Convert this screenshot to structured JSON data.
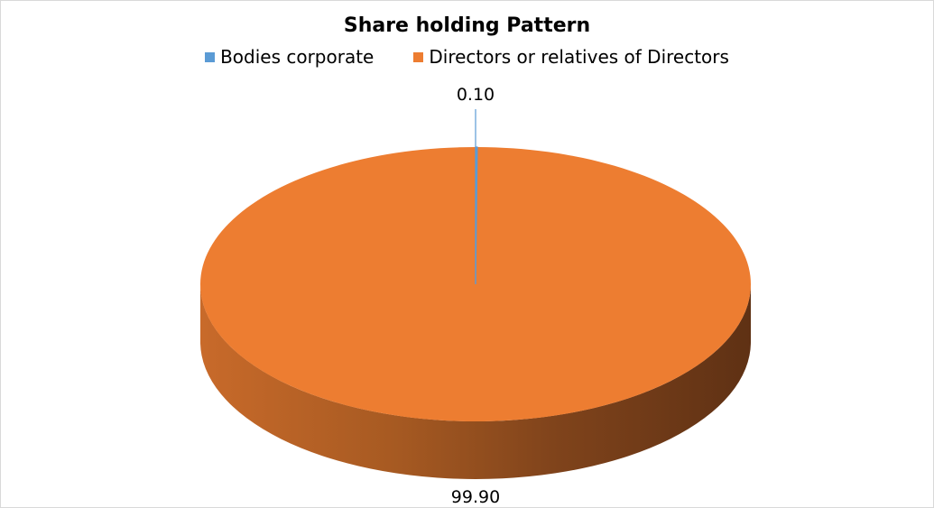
{
  "chart_data": {
    "type": "pie",
    "title": "Share holding Pattern",
    "series": [
      {
        "values": [
          0.1,
          99.9
        ]
      }
    ],
    "categories": [
      "Bodies corporate",
      "Directors or relatives of Directors"
    ],
    "data_labels": [
      "0.10",
      "99.90"
    ],
    "colors": [
      "#5b9bd5",
      "#ed7d31"
    ],
    "three_d": true,
    "legend_position": "top"
  }
}
